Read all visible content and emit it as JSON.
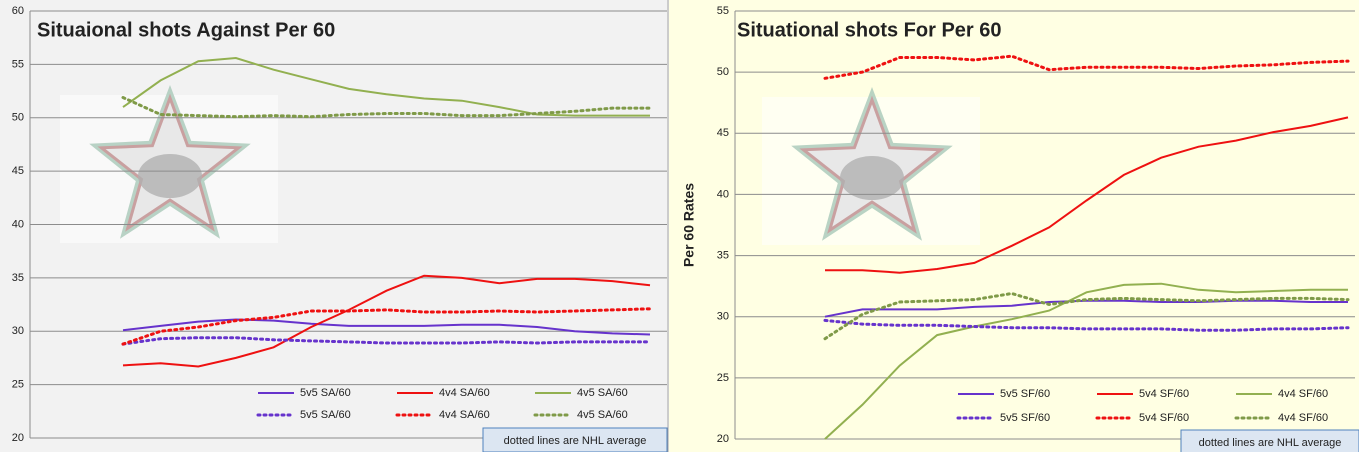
{
  "chart_data": [
    {
      "type": "line",
      "title": "Situaional shots Against Per 60",
      "ylim": [
        20,
        60
      ],
      "yticks": [
        20,
        25,
        30,
        35,
        40,
        45,
        50,
        55,
        60
      ],
      "grid": true,
      "series": [
        {
          "name": "5v5 SA/60",
          "color": "#6633cc",
          "style": "solid",
          "values": [
            30.1,
            30.5,
            30.9,
            31.1,
            31.0,
            30.7,
            30.5,
            30.5,
            30.5,
            30.6,
            30.6,
            30.4,
            30.0,
            29.8,
            29.7
          ]
        },
        {
          "name": "4v4 SA/60",
          "color": "#ee1111",
          "style": "solid",
          "values": [
            26.8,
            27.0,
            26.7,
            27.5,
            28.5,
            30.4,
            32.0,
            33.8,
            35.2,
            35.0,
            34.5,
            34.9,
            34.9,
            34.7,
            34.3
          ]
        },
        {
          "name": "4v5 SA/60",
          "color": "#92b050",
          "style": "solid",
          "values": [
            51.0,
            53.5,
            55.3,
            55.6,
            54.5,
            53.6,
            52.7,
            52.2,
            51.8,
            51.6,
            51.0,
            50.3,
            50.2,
            50.2,
            50.2
          ]
        },
        {
          "name": "5v5 SA/60",
          "color": "#6633cc",
          "style": "dotted",
          "values": [
            28.8,
            29.3,
            29.4,
            29.4,
            29.2,
            29.1,
            29.0,
            28.9,
            28.9,
            28.9,
            29.0,
            28.9,
            29.0,
            29.0,
            29.0
          ]
        },
        {
          "name": "4v4 SA/60",
          "color": "#ee1111",
          "style": "dotted",
          "values": [
            28.8,
            30.0,
            30.4,
            31.0,
            31.3,
            31.9,
            31.9,
            32.0,
            31.8,
            31.8,
            31.9,
            31.8,
            31.9,
            32.0,
            32.1
          ]
        },
        {
          "name": "4v5 SA/60",
          "color": "#7f9a48",
          "style": "dotted",
          "values": [
            51.9,
            50.3,
            50.2,
            50.1,
            50.2,
            50.1,
            50.3,
            50.4,
            50.4,
            50.2,
            50.2,
            50.4,
            50.6,
            50.9,
            50.9
          ]
        }
      ],
      "note": "dotted lines are NHL average"
    },
    {
      "type": "line",
      "title": "Situational shots For Per 60",
      "y_label": "Per 60 Rates",
      "ylim": [
        20,
        55
      ],
      "yticks": [
        20,
        25,
        30,
        35,
        40,
        45,
        50,
        55
      ],
      "grid": true,
      "series": [
        {
          "name": "5v5 SF/60",
          "color": "#6633cc",
          "style": "solid",
          "values": [
            30.0,
            30.6,
            30.6,
            30.6,
            30.8,
            30.9,
            31.2,
            31.3,
            31.3,
            31.2,
            31.2,
            31.3,
            31.3,
            31.2,
            31.2
          ]
        },
        {
          "name": "5v4 SF/60",
          "color": "#ee1111",
          "style": "solid",
          "values": [
            33.8,
            33.8,
            33.6,
            33.9,
            34.4,
            35.8,
            37.3,
            39.5,
            41.6,
            43.0,
            43.9,
            44.4,
            45.1,
            45.6,
            46.3
          ]
        },
        {
          "name": "4v4 SF/60",
          "color": "#92b050",
          "style": "solid",
          "values": [
            20.0,
            22.8,
            26.0,
            28.5,
            29.2,
            29.8,
            30.5,
            32.0,
            32.6,
            32.7,
            32.2,
            32.0,
            32.1,
            32.2,
            32.2
          ]
        },
        {
          "name": "5v5 SF/60",
          "color": "#6633cc",
          "style": "dotted",
          "values": [
            29.7,
            29.4,
            29.3,
            29.3,
            29.2,
            29.1,
            29.1,
            29.0,
            29.0,
            29.0,
            28.9,
            28.9,
            29.0,
            29.0,
            29.1
          ]
        },
        {
          "name": "5v4 SF/60",
          "color": "#ee1111",
          "style": "dotted",
          "values": [
            49.5,
            50.0,
            51.2,
            51.2,
            51.0,
            51.3,
            50.2,
            50.4,
            50.4,
            50.4,
            50.3,
            50.5,
            50.6,
            50.8,
            50.9
          ]
        },
        {
          "name": "4v4 SF/60",
          "color": "#7f9a48",
          "style": "dotted",
          "values": [
            28.2,
            30.2,
            31.2,
            31.3,
            31.4,
            31.9,
            31.0,
            31.4,
            31.5,
            31.4,
            31.3,
            31.4,
            31.5,
            31.5,
            31.4
          ]
        }
      ],
      "note": "dotted lines are NHL average"
    }
  ]
}
